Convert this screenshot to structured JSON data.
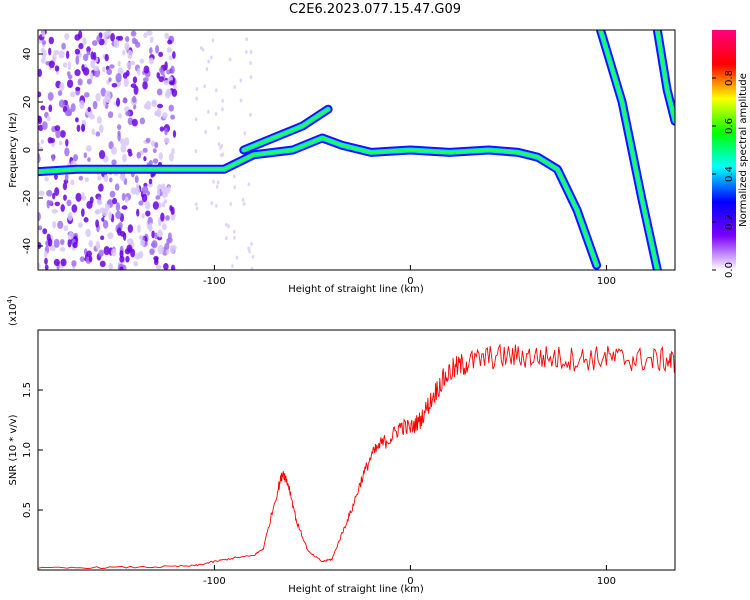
{
  "title": "C2E6.2023.077.15.47.G09",
  "chart_data": [
    {
      "type": "heatmap",
      "xlabel": "Height of straight line (km)",
      "ylabel": "Frequency (Hz)",
      "xlim": [
        -190,
        135
      ],
      "ylim": [
        -50,
        50
      ],
      "xticks": [
        -100,
        0,
        100
      ],
      "yticks": [
        -40,
        -20,
        0,
        20,
        40
      ],
      "colorbar": {
        "label": "Normalized spectral amplitude",
        "range": [
          0.0,
          1.0
        ],
        "ticks": [
          "0.0",
          "0.2",
          "0.4",
          "0.6",
          "0.8"
        ],
        "colors": [
          "#ffffff",
          "#7a00ff",
          "#0000ff",
          "#00ffff",
          "#00ff00",
          "#ffff00",
          "#ff0000",
          "#ff0080"
        ]
      },
      "series": [
        {
          "x": [
            -190,
            -170,
            -150,
            -125,
            -110,
            -95,
            -80,
            -60,
            -45,
            -35,
            -20,
            0,
            20,
            40,
            55,
            65,
            75,
            85,
            95
          ],
          "y": [
            -9,
            -8,
            -8,
            -8,
            -8,
            -8,
            -2,
            0,
            5,
            2,
            -1,
            0,
            -1,
            0,
            -1,
            -3,
            -8,
            -25,
            -48
          ]
        },
        {
          "x": [
            -85,
            -70,
            -55,
            -42
          ],
          "y": [
            0,
            5,
            10,
            17
          ]
        },
        {
          "x": [
            97,
            108,
            118,
            126
          ],
          "y": [
            50,
            20,
            -20,
            -50
          ]
        },
        {
          "x": [
            126,
            131,
            135
          ],
          "y": [
            50,
            25,
            12
          ]
        }
      ]
    },
    {
      "type": "line",
      "xlabel": "Height of straight line (km)",
      "ylabel": "SNR (10 * v/v)",
      "y_multiplier": "(x10",
      "y_multiplier_exp": "4",
      "xlim": [
        -190,
        135
      ],
      "ylim": [
        0,
        20000
      ],
      "xticks": [
        -100,
        0,
        100
      ],
      "yticks": [
        0.5,
        1.0,
        1.5
      ],
      "series": [
        {
          "color": "#ff0000",
          "x": [
            -190,
            -160,
            -130,
            -110,
            -100,
            -90,
            -80,
            -75,
            -68,
            -65,
            -62,
            -58,
            -52,
            -45,
            -40,
            -35,
            -30,
            -25,
            -20,
            -15,
            -10,
            -5,
            0,
            5,
            10,
            15,
            20,
            25,
            30,
            40,
            50,
            60,
            70,
            80,
            90,
            100,
            110,
            120,
            130,
            135
          ],
          "y": [
            150,
            200,
            250,
            350,
            700,
            1000,
            1200,
            1800,
            6500,
            8200,
            7000,
            4000,
            1500,
            700,
            900,
            3000,
            5000,
            7500,
            9500,
            10500,
            11000,
            12000,
            11800,
            12500,
            14000,
            15500,
            16500,
            17000,
            17300,
            17700,
            17800,
            17800,
            17700,
            17600,
            17600,
            17700,
            17600,
            17500,
            17500,
            17300
          ]
        }
      ]
    }
  ]
}
